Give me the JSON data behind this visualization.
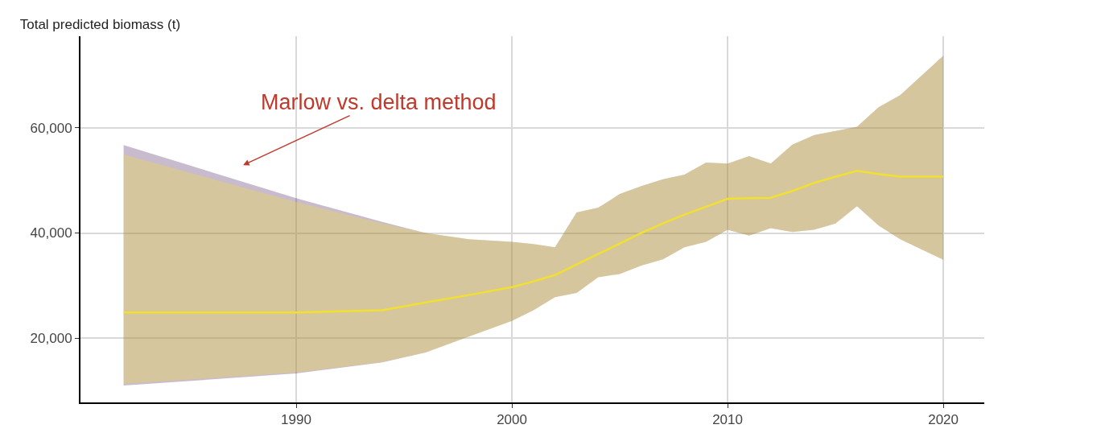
{
  "chart_data": {
    "type": "line",
    "title": "Total predicted biomass (t)",
    "x": [
      1982,
      1990,
      1994,
      1996,
      1998,
      2000,
      2001,
      2002,
      2003,
      2004,
      2005,
      2006,
      2007,
      2008,
      2009,
      2010,
      2011,
      2012,
      2013,
      2014,
      2015,
      2016,
      2017,
      2018,
      2020
    ],
    "series": [
      {
        "color": "#4b1d5e",
        "values": [
          null,
          null,
          null,
          null,
          null,
          null,
          null,
          null,
          null,
          null,
          null,
          null,
          null,
          null,
          null,
          null,
          null,
          null,
          null,
          null,
          null,
          null,
          null,
          null,
          null
        ],
        "lower": [
          11000,
          13300,
          15400,
          17300,
          20300,
          23300,
          25300,
          27800,
          28600,
          31600,
          32200,
          33800,
          35000,
          37300,
          38300,
          40600,
          39500,
          40900,
          40200,
          40600,
          41800,
          45100,
          41400,
          38800,
          34900
        ],
        "upper": [
          56700,
          46600,
          42100,
          40000,
          38800,
          38300,
          37900,
          37300,
          43900,
          44800,
          47400,
          48900,
          50200,
          51100,
          53400,
          53200,
          54600,
          53200,
          56800,
          58600,
          59400,
          60200,
          63900,
          66200,
          73700
        ]
      },
      {
        "color": "#f2e030",
        "values": [
          24900,
          24900,
          25300,
          26800,
          28200,
          29700,
          30800,
          32000,
          34000,
          36000,
          38000,
          40000,
          41800,
          43500,
          45000,
          46500,
          46600,
          46700,
          48000,
          49500,
          50700,
          51800,
          51200,
          50700,
          50700
        ],
        "lower": [
          11300,
          13500,
          15500,
          17300,
          20300,
          23300,
          25300,
          27800,
          28600,
          31600,
          32200,
          33800,
          35000,
          37300,
          38300,
          40600,
          39500,
          40900,
          40200,
          40600,
          41800,
          45100,
          41400,
          38800,
          34900
        ],
        "upper": [
          54900,
          45900,
          41800,
          40000,
          38800,
          38300,
          37900,
          37300,
          43900,
          44800,
          47400,
          48900,
          50200,
          51100,
          53400,
          53200,
          54600,
          53200,
          56800,
          58600,
          59400,
          60200,
          63900,
          66200,
          73700
        ]
      }
    ],
    "xlim": [
      1980,
      2021.9
    ],
    "xticks": [
      1990,
      2000,
      2010,
      2020
    ],
    "ylim": [
      7800,
      77400
    ],
    "yticks": [
      {
        "value": 20000,
        "label": "20,000"
      },
      {
        "value": 40000,
        "label": "40,000"
      },
      {
        "value": 60000,
        "label": "60,000"
      }
    ],
    "grid": true,
    "annotations": [
      "Marlow vs. delta method"
    ]
  }
}
